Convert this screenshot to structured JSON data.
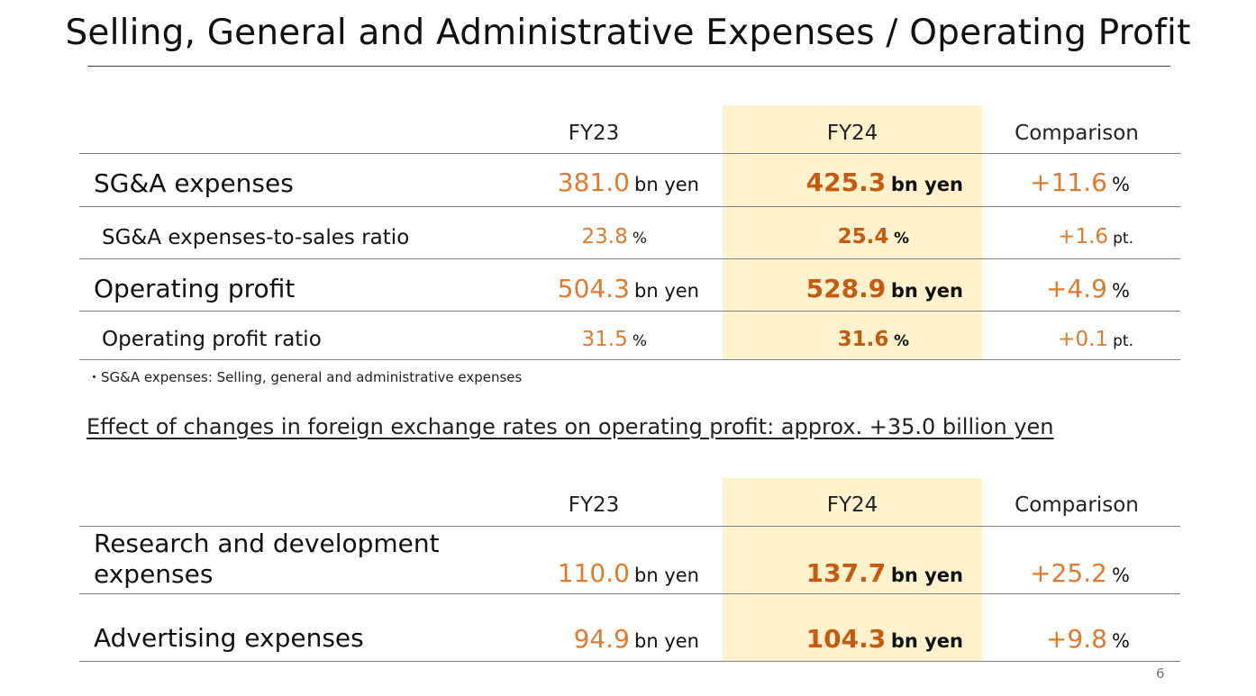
{
  "title": "Selling, General and Administrative Expenses / Operating Profit",
  "table1": {
    "headers": {
      "fy23": "FY23",
      "fy24": "FY24",
      "comparison": "Comparison"
    },
    "rows": [
      {
        "label": "SG&A expenses",
        "fy23_value": "381.0",
        "fy23_unit": "bn yen",
        "fy24_value": "425.3",
        "fy24_unit": "bn yen",
        "comp_value": "+11.6",
        "comp_unit": "%"
      },
      {
        "label": "SG&A expenses-to-sales ratio",
        "fy23_value": "23.8",
        "fy23_unit": "%",
        "fy24_value": "25.4",
        "fy24_unit": "%",
        "comp_value": "+1.6",
        "comp_unit": "pt."
      },
      {
        "label": "Operating profit",
        "fy23_value": "504.3",
        "fy23_unit": "bn yen",
        "fy24_value": "528.9",
        "fy24_unit": "bn yen",
        "comp_value": "+4.9",
        "comp_unit": "%"
      },
      {
        "label": "Operating profit ratio",
        "fy23_value": "31.5",
        "fy23_unit": "%",
        "fy24_value": "31.6",
        "fy24_unit": "%",
        "comp_value": "+0.1",
        "comp_unit": "pt."
      }
    ]
  },
  "footnote": "・SG&A expenses: Selling, general and administrative expenses",
  "fx_note": "Effect of changes in foreign exchange rates on operating profit: approx. +35.0 billion yen",
  "table2": {
    "headers": {
      "fy23": "FY23",
      "fy24": "FY24",
      "comparison": "Comparison"
    },
    "rows": [
      {
        "label_line1": "Research and development",
        "label_line2": "expenses",
        "fy23_value": "110.0",
        "fy23_unit": "bn yen",
        "fy24_value": "137.7",
        "fy24_unit": "bn yen",
        "comp_value": "+25.2",
        "comp_unit": "%"
      },
      {
        "label": "Advertising expenses",
        "fy23_value": "94.9",
        "fy23_unit": "bn yen",
        "fy24_value": "104.3",
        "fy24_unit": "bn yen",
        "comp_value": "+9.8",
        "comp_unit": "%"
      }
    ]
  },
  "page_number": "6",
  "colors": {
    "fy23_value": "#e07b2e",
    "fy24_value": "#c55a11",
    "fy24_highlight": "#fff2cc",
    "rule": "#7f7f7f"
  }
}
